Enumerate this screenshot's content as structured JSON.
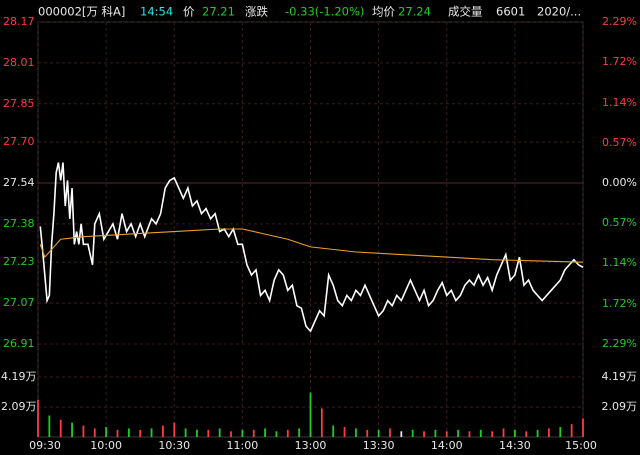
{
  "header": {
    "code": "000002[万 科A]",
    "time": "14:54",
    "price_label": "价",
    "price": "27.21",
    "change_label": "涨跌",
    "change": "-0.33(-1.20%)",
    "avg_label": "均价",
    "avg": "27.24",
    "volume_label": "成交量",
    "volume": "6601",
    "date": "2020/..."
  },
  "chart_data": [
    {
      "type": "line",
      "xlim": [
        0,
        240
      ],
      "ylim": [
        26.91,
        28.17
      ],
      "yticks": [
        26.91,
        27.07,
        27.23,
        27.38,
        27.54,
        {
          "value": 27.7,
          "label": "27.70"
        },
        27.85,
        28.01,
        28.17
      ],
      "y2lim": [
        -2.29,
        2.29
      ],
      "y2ticks": [
        {
          "value": -2.29,
          "label": "2.29%"
        },
        {
          "value": -1.72,
          "label": "1.72%"
        },
        {
          "value": -1.14,
          "label": "1.14%"
        },
        {
          "value": -0.57,
          "label": "0.57%"
        },
        {
          "value": 0,
          "label": "0.00%"
        },
        {
          "value": 0.57,
          "label": "0.57%"
        },
        {
          "value": 1.14,
          "label": "1.14%"
        },
        {
          "value": 1.72,
          "label": "1.72%"
        },
        {
          "value": 2.29,
          "label": "2.29%"
        }
      ],
      "up_color": "#ff3b3b",
      "down_color": "#22cc22",
      "flat_color": "#e8e8e8",
      "grid": true,
      "series": [
        {
          "color": "#ffffff",
          "x": [
            1,
            2,
            4,
            5,
            6,
            7,
            8,
            9,
            10,
            11,
            12,
            13,
            14,
            15,
            16,
            17,
            18,
            19,
            20,
            22,
            24,
            25,
            27,
            29,
            31,
            33,
            35,
            37,
            39,
            41,
            43,
            45,
            47,
            50,
            52,
            54,
            56,
            58,
            60,
            62,
            64,
            66,
            68,
            70,
            72,
            74,
            76,
            78,
            80,
            82,
            84,
            86,
            88,
            90,
            92,
            94,
            96,
            98,
            100,
            102,
            104,
            106,
            108,
            110,
            112,
            114,
            116,
            118,
            120,
            122,
            124,
            126,
            128,
            130,
            132,
            134,
            136,
            138,
            140,
            142,
            144,
            146,
            148,
            150,
            152,
            154,
            156,
            158,
            160,
            162,
            164,
            166,
            168,
            170,
            172,
            174,
            176,
            178,
            180,
            182,
            184,
            186,
            188,
            190,
            192,
            194,
            196,
            198,
            200,
            202,
            204,
            206,
            208,
            210,
            212,
            214,
            216,
            218,
            220,
            222,
            224,
            226,
            228,
            230,
            232,
            234,
            236,
            238,
            240
          ],
          "values": [
            27.37,
            27.28,
            27.08,
            27.1,
            27.3,
            27.42,
            27.58,
            27.62,
            27.55,
            27.62,
            27.45,
            27.55,
            27.4,
            27.52,
            27.3,
            27.35,
            27.3,
            27.38,
            27.3,
            27.3,
            27.22,
            27.38,
            27.42,
            27.32,
            27.35,
            27.38,
            27.32,
            27.42,
            27.35,
            27.38,
            27.33,
            27.38,
            27.33,
            27.4,
            27.38,
            27.42,
            27.52,
            27.55,
            27.56,
            27.52,
            27.48,
            27.52,
            27.45,
            27.47,
            27.42,
            27.44,
            27.4,
            27.42,
            27.35,
            27.36,
            27.33,
            27.36,
            27.3,
            27.3,
            27.22,
            27.18,
            27.2,
            27.1,
            27.12,
            27.08,
            27.16,
            27.2,
            27.18,
            27.12,
            27.14,
            27.06,
            27.05,
            26.98,
            26.96,
            27,
            27.04,
            27.02,
            27.18,
            27.14,
            27.08,
            27.06,
            27.1,
            27.08,
            27.12,
            27.1,
            27.14,
            27.1,
            27.06,
            27.02,
            27.04,
            27.08,
            27.06,
            27.1,
            27.08,
            27.12,
            27.16,
            27.12,
            27.08,
            27.12,
            27.06,
            27.08,
            27.12,
            27.15,
            27.1,
            27.12,
            27.08,
            27.1,
            27.14,
            27.16,
            27.14,
            27.18,
            27.14,
            27.17,
            27.12,
            27.18,
            27.22,
            27.26,
            27.16,
            27.18,
            27.25,
            27.14,
            27.16,
            27.12,
            27.1,
            27.08,
            27.1,
            27.12,
            27.14,
            27.16,
            27.2,
            27.22,
            27.24,
            27.22,
            27.21
          ]
        },
        {
          "color": "#e8a030",
          "x": [
            1,
            3,
            6,
            10,
            20,
            40,
            60,
            80,
            90,
            100,
            110,
            120,
            140,
            160,
            180,
            200,
            220,
            240
          ],
          "values": [
            27.3,
            27.25,
            27.28,
            27.32,
            27.33,
            27.34,
            27.35,
            27.36,
            27.36,
            27.34,
            27.32,
            27.29,
            27.27,
            27.26,
            27.25,
            27.24,
            27.235,
            27.23
          ]
        }
      ]
    },
    {
      "type": "bar",
      "xlim": [
        0,
        240
      ],
      "ylim": [
        0,
        6.08
      ],
      "yticks": [
        {
          "value": 2.09,
          "label": "2.09万"
        },
        {
          "value": 4.19,
          "label": "4.19万"
        }
      ],
      "xticks": [
        {
          "value": 0,
          "label": "09:30"
        },
        {
          "value": 30,
          "label": "10:00"
        },
        {
          "value": 60,
          "label": "10:30"
        },
        {
          "value": 90,
          "label": "11:00"
        },
        {
          "value": 120,
          "label": "13:00"
        },
        {
          "value": 150,
          "label": "13:30"
        },
        {
          "value": 180,
          "label": "14:00"
        },
        {
          "value": 210,
          "label": "14:30"
        },
        {
          "value": 240,
          "label": "15:00"
        }
      ],
      "x": [
        0,
        5,
        10,
        15,
        20,
        25,
        30,
        35,
        40,
        45,
        50,
        55,
        60,
        65,
        70,
        75,
        80,
        85,
        90,
        95,
        100,
        105,
        110,
        115,
        120,
        125,
        130,
        135,
        140,
        145,
        150,
        155,
        160,
        165,
        170,
        175,
        180,
        185,
        190,
        195,
        200,
        205,
        210,
        215,
        220,
        225,
        230,
        235,
        240
      ],
      "values": [
        2.6,
        1.5,
        1.2,
        1.0,
        0.8,
        0.6,
        0.7,
        0.5,
        0.6,
        0.5,
        0.6,
        0.8,
        1.0,
        0.6,
        0.5,
        0.5,
        0.6,
        0.4,
        0.5,
        0.5,
        0.6,
        0.4,
        0.5,
        0.6,
        3.1,
        2.0,
        0.8,
        0.7,
        0.6,
        0.5,
        0.5,
        0.6,
        0.4,
        0.5,
        0.4,
        0.5,
        0.4,
        0.5,
        0.4,
        0.5,
        0.4,
        0.6,
        0.5,
        0.4,
        0.5,
        0.6,
        0.7,
        0.9,
        1.3
      ],
      "colors": [
        "#ff3b3b",
        "#22cc22",
        "#ff3b3b",
        "#22cc22",
        "#ff3b3b",
        "#ff3b3b",
        "#22cc22",
        "#ff3b3b",
        "#22cc22",
        "#ff3b3b",
        "#22cc22",
        "#ff3b3b",
        "#ff3b3b",
        "#22cc22",
        "#22cc22",
        "#ff3b3b",
        "#22cc22",
        "#ff3b3b",
        "#22cc22",
        "#ff3b3b",
        "#22cc22",
        "#22cc22",
        "#ff3b3b",
        "#22cc22",
        "#22cc22",
        "#ff3b3b",
        "#22cc22",
        "#ff3b3b",
        "#22cc22",
        "#ff3b3b",
        "#22cc22",
        "#ff3b3b",
        "#e8e8e8",
        "#22cc22",
        "#ff3b3b",
        "#22cc22",
        "#ff3b3b",
        "#22cc22",
        "#ff3b3b",
        "#22cc22",
        "#ff3b3b",
        "#ff3b3b",
        "#22cc22",
        "#ff3b3b",
        "#22cc22",
        "#ff3b3b",
        "#22cc22",
        "#ff3b3b",
        "#ff3b3b"
      ]
    }
  ]
}
